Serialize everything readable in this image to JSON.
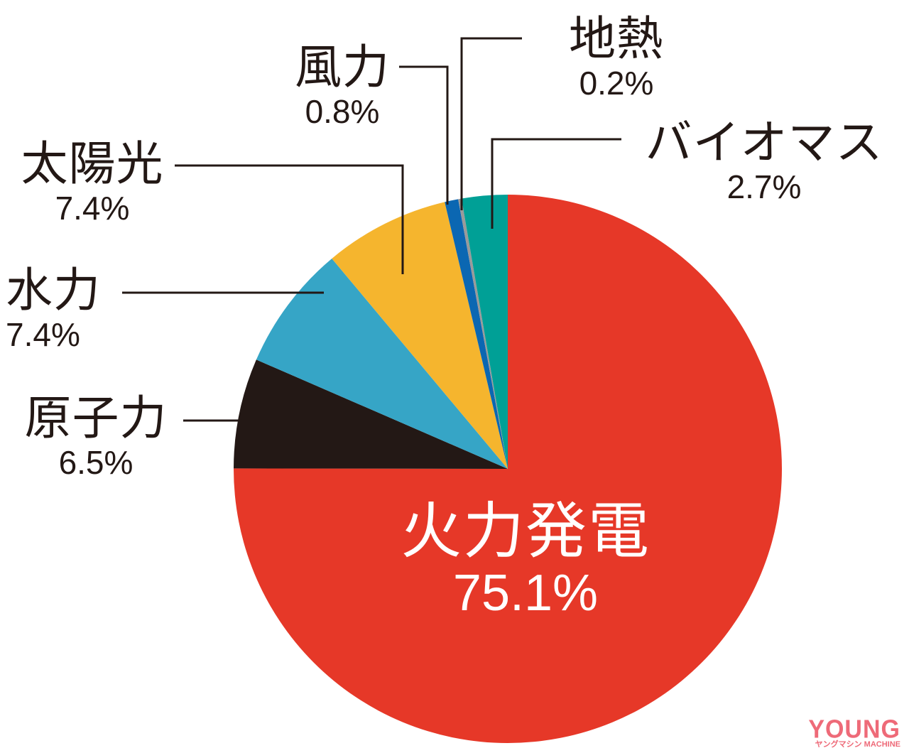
{
  "chart_data": {
    "type": "pie",
    "title": "",
    "start_angle_deg": 0,
    "direction": "counterclockwise_from_top_for_minor; major slice clockwise",
    "slices": [
      {
        "label": "火力発電",
        "value": 75.1,
        "display": "75.1%",
        "color": "#e63828"
      },
      {
        "label": "原子力",
        "value": 6.5,
        "display": "6.5%",
        "color": "#231815"
      },
      {
        "label": "水力",
        "value": 7.4,
        "display": "7.4%",
        "color": "#36a5c6"
      },
      {
        "label": "太陽光",
        "value": 7.4,
        "display": "7.4%",
        "color": "#f5b52e"
      },
      {
        "label": "風力",
        "value": 0.8,
        "display": "0.8%",
        "color": "#0b67b2"
      },
      {
        "label": "地熱",
        "value": 0.2,
        "display": "0.2%",
        "color": "#9a9a9a"
      },
      {
        "label": "バイオマス",
        "value": 2.7,
        "display": "2.7%",
        "color": "#00a096"
      }
    ],
    "categories": [
      "火力発電",
      "原子力",
      "水力",
      "太陽光",
      "風力",
      "地熱",
      "バイオマス"
    ],
    "values": [
      75.1,
      6.5,
      7.4,
      7.4,
      0.8,
      0.2,
      2.7
    ],
    "unit": "%",
    "legend": "none (direct labels with leader lines)"
  },
  "labels": {
    "thermal": {
      "name": "火力発電",
      "pct": "75.1%"
    },
    "nuclear": {
      "name": "原子力",
      "pct": "6.5%"
    },
    "hydro": {
      "name": "水力",
      "pct": "7.4%"
    },
    "solar": {
      "name": "太陽光",
      "pct": "7.4%"
    },
    "wind": {
      "name": "風力",
      "pct": "0.8%"
    },
    "geothermal": {
      "name": "地熱",
      "pct": "0.2%"
    },
    "biomass": {
      "name": "バイオマス",
      "pct": "2.7%"
    }
  },
  "watermark": {
    "main": "YOUNG",
    "sub": "ヤングマシン MACHINE",
    "color": "#ee6a78"
  }
}
